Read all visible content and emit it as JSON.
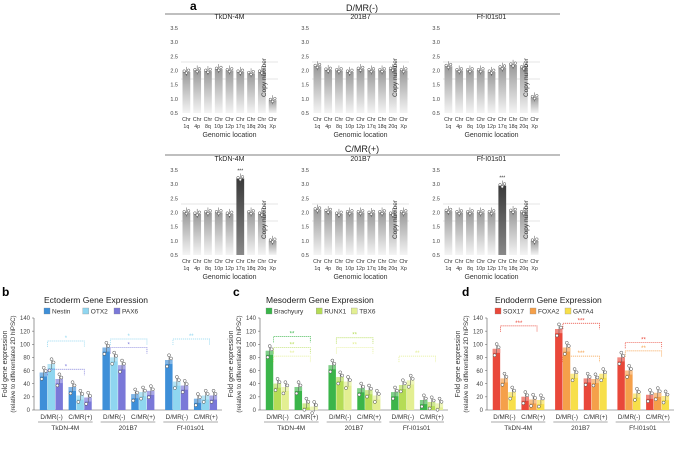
{
  "figure": {
    "panel_labels": [
      "a",
      "b",
      "c",
      "d"
    ],
    "rows": {
      "top": "D/MR(-)",
      "bottom": "C/MR(+)"
    },
    "cnv_ylabel": "Copy number",
    "cnv_xlabel": "Genomic location",
    "cnv_yticks": [
      "0.5",
      "1.0",
      "1.5",
      "2.0",
      "2.5",
      "3.0",
      "3.5"
    ],
    "cnv_chr_prefix": "Chr",
    "fold_ylabel_1": "Fold gene expression",
    "fold_ylabel_2": "(relative to differentiated 2D hiPSC)",
    "group_labels": [
      "D/MR(-)",
      "C/MR(+)"
    ],
    "line_labels": [
      "TkDN-4M",
      "201B7",
      "Ff-I01s01"
    ],
    "significance": {
      "one": "*",
      "two": "**",
      "three": "***"
    }
  },
  "chart_data": [
    {
      "type": "bar",
      "id": "cnv_dmr_tkdn",
      "title": "TkDN-4M",
      "row": "D/MR(-)",
      "categories": [
        "1q",
        "4p",
        "8q",
        "10p",
        "12p",
        "17q",
        "18q",
        "20q",
        "Xp"
      ],
      "values": [
        1.95,
        2.0,
        1.98,
        2.05,
        2.0,
        1.95,
        1.9,
        1.95,
        0.95
      ],
      "ylim": [
        0.5,
        3.5
      ],
      "ylabel": "Copy number",
      "xlabel": "Genomic location"
    },
    {
      "type": "bar",
      "id": "cnv_dmr_201b7",
      "title": "201B7",
      "row": "D/MR(-)",
      "categories": [
        "1q",
        "4p",
        "8q",
        "10p",
        "12p",
        "17q",
        "18q",
        "20q",
        "Xp"
      ],
      "values": [
        2.15,
        2.02,
        2.0,
        1.95,
        2.05,
        2.0,
        2.0,
        2.05,
        2.0
      ],
      "ylim": [
        0.5,
        3.5
      ],
      "ylabel": "Copy number",
      "xlabel": "Genomic location"
    },
    {
      "type": "bar",
      "id": "cnv_dmr_ff",
      "title": "Ff-I01s01",
      "row": "D/MR(-)",
      "categories": [
        "1q",
        "4p",
        "8q",
        "10p",
        "12p",
        "17q",
        "18q",
        "20q",
        "Xp"
      ],
      "values": [
        2.15,
        2.0,
        2.0,
        2.0,
        1.95,
        2.1,
        2.2,
        2.1,
        1.05
      ],
      "ylim": [
        0.5,
        3.5
      ],
      "ylabel": "Copy number",
      "xlabel": "Genomic location"
    },
    {
      "type": "bar",
      "id": "cnv_cmr_tkdn",
      "title": "TkDN-4M",
      "row": "C/MR(+)",
      "categories": [
        "1q",
        "4p",
        "8q",
        "10p",
        "12p",
        "17q",
        "18q",
        "20q",
        "Xp"
      ],
      "values": [
        2.0,
        1.95,
        2.0,
        2.0,
        1.95,
        3.2,
        2.0,
        1.95,
        1.0
      ],
      "highlight": [
        5
      ],
      "ylim": [
        0.5,
        3.5
      ],
      "ylabel": "Copy number",
      "xlabel": "Genomic location"
    },
    {
      "type": "bar",
      "id": "cnv_cmr_201b7",
      "title": "201B7",
      "row": "C/MR(+)",
      "categories": [
        "1q",
        "4p",
        "8q",
        "10p",
        "12p",
        "17q",
        "18q",
        "20q",
        "Xp"
      ],
      "values": [
        2.1,
        2.05,
        1.95,
        2.0,
        2.0,
        1.98,
        2.0,
        1.95,
        2.0
      ],
      "ylim": [
        0.5,
        3.5
      ],
      "ylabel": "Copy number",
      "xlabel": "Genomic location"
    },
    {
      "type": "bar",
      "id": "cnv_cmr_ff",
      "title": "Ff-I01s01",
      "row": "C/MR(+)",
      "categories": [
        "1q",
        "4p",
        "8q",
        "10p",
        "12p",
        "17q",
        "18q",
        "20q",
        "Xp"
      ],
      "values": [
        2.05,
        2.0,
        2.0,
        2.0,
        2.0,
        2.95,
        2.05,
        2.0,
        1.0
      ],
      "highlight": [
        5
      ],
      "ylim": [
        0.5,
        3.5
      ],
      "ylabel": "Copy number",
      "xlabel": "Genomic location"
    },
    {
      "type": "bar",
      "id": "ecto",
      "title": "Ectoderm Gene Expression",
      "ylim": [
        0,
        140
      ],
      "yticks": [
        0,
        20,
        40,
        60,
        80,
        100,
        120,
        140
      ],
      "series": [
        {
          "name": "Nestin",
          "color": "#3e8fd8",
          "values": [
            57,
            35,
            95,
            24,
            76,
            17
          ]
        },
        {
          "name": "OTX2",
          "color": "#8fd6f0",
          "values": [
            70,
            22,
            80,
            27,
            43,
            22
          ]
        },
        {
          "name": "PAX6",
          "color": "#7a78d8",
          "values": [
            47,
            19,
            68,
            29,
            37,
            22
          ]
        }
      ],
      "brackets": [
        {
          "from": 0,
          "to": 1,
          "level": 105,
          "color": "#8fd6f0",
          "stars": "*"
        },
        {
          "from": 0,
          "to": 1,
          "level": 62,
          "color": "#7a78d8",
          "stars": "*"
        },
        {
          "from": 2,
          "to": 3,
          "level": 108,
          "color": "#8fd6f0",
          "stars": "*"
        },
        {
          "from": 2,
          "to": 3,
          "level": 95,
          "color": "#7a78d8",
          "stars": "*"
        },
        {
          "from": 4,
          "to": 5,
          "level": 108,
          "color": "#8fd6f0",
          "stars": "**"
        }
      ]
    },
    {
      "type": "bar",
      "id": "meso",
      "title": "Mesoderm Gene Expression",
      "ylim": [
        0,
        140
      ],
      "yticks": [
        0,
        20,
        40,
        60,
        80,
        100,
        120,
        140
      ],
      "series": [
        {
          "name": "Brachyury",
          "color": "#3bb54a",
          "values": [
            90,
            35,
            68,
            33,
            27,
            15
          ]
        },
        {
          "name": "RUNX1",
          "color": "#b5dc56",
          "values": [
            40,
            10,
            50,
            30,
            38,
            12
          ]
        },
        {
          "name": "TBX6",
          "color": "#e3ef92",
          "values": [
            35,
            5,
            43,
            22,
            45,
            10
          ]
        }
      ],
      "brackets": [
        {
          "from": 0,
          "to": 1,
          "level": 112,
          "color": "#3bb54a",
          "stars": "**"
        },
        {
          "from": 0,
          "to": 1,
          "level": 95,
          "color": "#b5dc56",
          "stars": "**"
        },
        {
          "from": 0,
          "to": 1,
          "level": 82,
          "color": "#e3ef92",
          "stars": "**"
        },
        {
          "from": 2,
          "to": 3,
          "level": 110,
          "color": "#b5dc56",
          "stars": "**"
        },
        {
          "from": 2,
          "to": 3,
          "level": 95,
          "color": "#e3ef92",
          "stars": "**"
        },
        {
          "from": 4,
          "to": 5,
          "level": 82,
          "color": "#e3ef92",
          "stars": "**"
        }
      ]
    },
    {
      "type": "bar",
      "id": "endo",
      "title": "Endoderm Gene Expression",
      "ylim": [
        0,
        140
      ],
      "yticks": [
        0,
        20,
        40,
        60,
        80,
        100,
        120,
        140
      ],
      "series": [
        {
          "name": "SOX17",
          "color": "#e9483a",
          "values": [
            93,
            20,
            123,
            48,
            80,
            23
          ]
        },
        {
          "name": "FOXA2",
          "color": "#f5a04a",
          "values": [
            48,
            16,
            95,
            47,
            60,
            26
          ]
        },
        {
          "name": "GATA4",
          "color": "#f7df4a",
          "values": [
            27,
            15,
            55,
            55,
            25,
            21
          ]
        }
      ],
      "brackets": [
        {
          "from": 0,
          "to": 1,
          "level": 128,
          "color": "#e9483a",
          "stars": "***"
        },
        {
          "from": 2,
          "to": 3,
          "level": 132,
          "color": "#e9483a",
          "stars": "***"
        },
        {
          "from": 2,
          "to": 3,
          "level": 82,
          "color": "#f5a04a",
          "stars": "***"
        },
        {
          "from": 4,
          "to": 5,
          "level": 103,
          "color": "#e9483a",
          "stars": "**"
        },
        {
          "from": 4,
          "to": 5,
          "level": 90,
          "color": "#f5a04a",
          "stars": "**"
        }
      ]
    }
  ]
}
